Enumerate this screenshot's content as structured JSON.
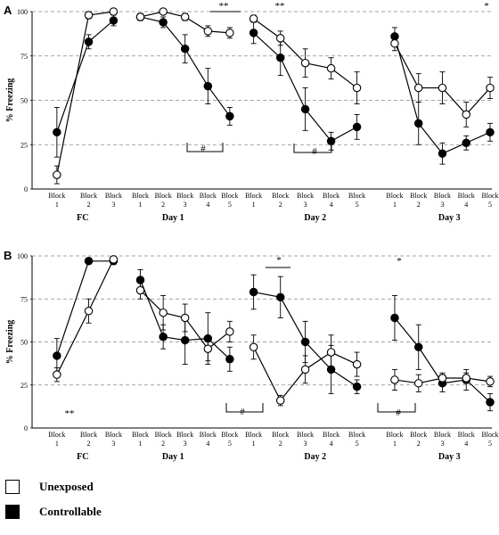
{
  "legend": {
    "items": [
      {
        "label": "Unexposed",
        "fill": "#ffffff"
      },
      {
        "label": "Controllable",
        "fill": "#000000"
      }
    ]
  },
  "chart_data": [
    {
      "type": "line",
      "panel_label": "A",
      "ylabel": "% Freezing",
      "ylim": [
        0,
        100
      ],
      "yticks": [
        0,
        25,
        50,
        75,
        100
      ],
      "grid": true,
      "sessions": [
        {
          "name": "FC",
          "blocks": [
            "Block 1",
            "Block 2",
            "Block 3"
          ],
          "unexposed": [
            8,
            98,
            100
          ],
          "unexposed_err": [
            5,
            2,
            1
          ],
          "controllable": [
            32,
            83,
            95
          ],
          "controllable_err": [
            14,
            4,
            3
          ]
        },
        {
          "name": "Day 1",
          "blocks": [
            "Block 1",
            "Block 2",
            "Block 3",
            "Block 4",
            "Block 5"
          ],
          "unexposed": [
            97,
            100,
            97,
            89,
            88
          ],
          "unexposed_err": [
            2,
            1,
            2,
            3,
            3
          ],
          "controllable": [
            97,
            94,
            79,
            58,
            41
          ],
          "controllable_err": [
            2,
            3,
            8,
            10,
            5
          ]
        },
        {
          "name": "Day 2",
          "blocks": [
            "Block 1",
            "Block 2",
            "Block 3",
            "Block 4",
            "Block 5"
          ],
          "unexposed": [
            96,
            85,
            71,
            68,
            57
          ],
          "unexposed_err": [
            2,
            4,
            8,
            6,
            9
          ],
          "controllable": [
            88,
            74,
            45,
            27,
            35
          ],
          "controllable_err": [
            6,
            10,
            12,
            5,
            7
          ]
        },
        {
          "name": "Day 3",
          "blocks": [
            "Block 1",
            "Block 2",
            "Block 3",
            "Block 4",
            "Block 5"
          ],
          "unexposed": [
            82,
            57,
            57,
            42,
            57
          ],
          "unexposed_err": [
            4,
            8,
            9,
            7,
            6
          ],
          "controllable": [
            86,
            37,
            20,
            26,
            32
          ],
          "controllable_err": [
            5,
            12,
            6,
            4,
            5
          ]
        }
      ],
      "annotations": [
        "**",
        "**",
        "*",
        "#",
        "#"
      ]
    },
    {
      "type": "line",
      "panel_label": "B",
      "ylabel": "% Freezing",
      "ylim": [
        0,
        100
      ],
      "yticks": [
        0,
        25,
        50,
        75,
        100
      ],
      "grid": true,
      "sessions": [
        {
          "name": "FC",
          "blocks": [
            "Block 1",
            "Block 2",
            "Block 3"
          ],
          "unexposed": [
            31,
            68,
            98
          ],
          "unexposed_err": [
            4,
            7,
            1
          ],
          "controllable": [
            42,
            97,
            97
          ],
          "controllable_err": [
            10,
            1,
            2
          ]
        },
        {
          "name": "Day 1",
          "blocks": [
            "Block 1",
            "Block 2",
            "Block 3",
            "Block 4",
            "Block 5"
          ],
          "unexposed": [
            80,
            67,
            64,
            46,
            56
          ],
          "unexposed_err": [
            5,
            10,
            8,
            7,
            6
          ],
          "controllable": [
            86,
            53,
            51,
            52,
            40
          ],
          "controllable_err": [
            6,
            7,
            14,
            15,
            7
          ]
        },
        {
          "name": "Day 2",
          "blocks": [
            "Block 1",
            "Block 2",
            "Block 3",
            "Block 4",
            "Block 5"
          ],
          "unexposed": [
            47,
            16,
            34,
            44,
            37
          ],
          "unexposed_err": [
            7,
            3,
            8,
            10,
            7
          ],
          "controllable": [
            79,
            76,
            50,
            34,
            24
          ],
          "controllable_err": [
            10,
            12,
            12,
            14,
            4
          ]
        },
        {
          "name": "Day 3",
          "blocks": [
            "Block 1",
            "Block 2",
            "Block 3",
            "Block 4",
            "Block 5"
          ],
          "unexposed": [
            28,
            26,
            29,
            29,
            27
          ],
          "unexposed_err": [
            6,
            5,
            3,
            3,
            3
          ],
          "controllable": [
            64,
            47,
            26,
            28,
            15
          ],
          "controllable_err": [
            13,
            13,
            5,
            6,
            5
          ]
        }
      ],
      "annotations": [
        "**",
        "*",
        "*",
        "#",
        "#"
      ]
    }
  ]
}
